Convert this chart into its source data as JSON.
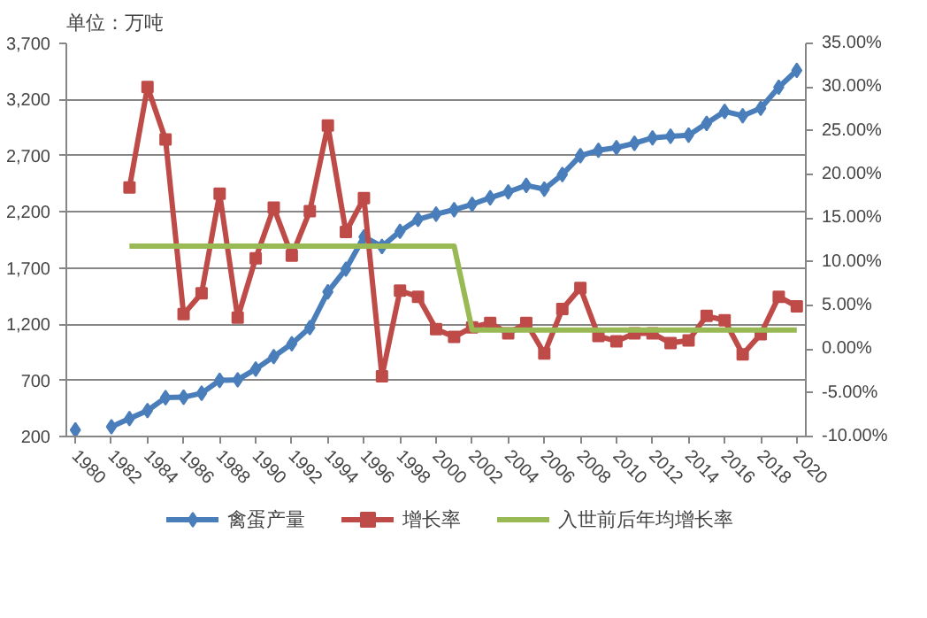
{
  "chart_data": {
    "type": "line",
    "ylabel": "单位：万吨",
    "x": [
      1980,
      1981,
      1982,
      1983,
      1984,
      1985,
      1986,
      1987,
      1988,
      1989,
      1990,
      1991,
      1992,
      1993,
      1994,
      1995,
      1996,
      1997,
      1998,
      1999,
      2000,
      2001,
      2002,
      2003,
      2004,
      2005,
      2006,
      2007,
      2008,
      2009,
      2010,
      2011,
      2012,
      2013,
      2014,
      2015,
      2016,
      2017,
      2018,
      2019,
      2020
    ],
    "xlim": [
      1979.5,
      2020.5
    ],
    "xticks": [
      1980,
      1982,
      1984,
      1986,
      1988,
      1990,
      1992,
      1994,
      1996,
      1998,
      2000,
      2002,
      2004,
      2006,
      2008,
      2010,
      2012,
      2014,
      2016,
      2018,
      2020
    ],
    "ylim": [
      200,
      3700
    ],
    "yticks": [
      200,
      700,
      {
        "value": 1200,
        "label": "1,200"
      },
      {
        "value": 1700,
        "label": "1,700"
      },
      {
        "value": 2200,
        "label": "2,200"
      },
      {
        "value": 2700,
        "label": "2,700"
      },
      {
        "value": 3200,
        "label": "3,200"
      },
      {
        "value": 3700,
        "label": "3,700"
      }
    ],
    "y2lim": [
      -10,
      35
    ],
    "y2ticks": [
      {
        "value": -10,
        "label": "-10.00%"
      },
      {
        "value": -5,
        "label": "-5.00%"
      },
      {
        "value": 0,
        "label": "0.00%"
      },
      {
        "value": 5,
        "label": "5.00%"
      },
      {
        "value": 10,
        "label": "10.00%"
      },
      {
        "value": 15,
        "label": "15.00%"
      },
      {
        "value": 20,
        "label": "20.00%"
      },
      {
        "value": 25,
        "label": "25.00%"
      },
      {
        "value": 30,
        "label": "30.00%"
      },
      {
        "value": 35,
        "label": "35.00%"
      }
    ],
    "grid": "y",
    "legend": "bottom",
    "series": [
      {
        "name": "禽蛋产量",
        "color": "#4a7ebb",
        "marker": "diamond",
        "values": [
          258,
          null,
          287,
          360,
          431,
          546,
          550,
          585,
          700,
          705,
          800,
          911,
          1026,
          1170,
          1488,
          1690,
          1978,
          1892,
          2027,
          2133,
          2180,
          2219,
          2267,
          2325,
          2378,
          2436,
          2402,
          2532,
          2700,
          2748,
          2772,
          2810,
          2859,
          2873,
          2883,
          2988,
          3094,
          3056,
          3123,
          3310,
          3460
        ]
      },
      {
        "name": "增长率",
        "color": "#be4b48",
        "marker": "square",
        "axis": "y2",
        "values": [
          null,
          null,
          null,
          18.5,
          30.0,
          24.0,
          4.0,
          6.4,
          17.8,
          3.6,
          10.4,
          16.2,
          10.7,
          15.8,
          25.6,
          13.4,
          17.3,
          -3.1,
          6.7,
          6.0,
          2.3,
          1.4,
          2.5,
          3.0,
          1.8,
          3.0,
          -0.5,
          4.6,
          7.0,
          1.5,
          0.9,
          1.8,
          1.8,
          0.7,
          1.0,
          3.8,
          3.3,
          -0.6,
          1.7,
          6.0,
          4.9
        ]
      },
      {
        "name": "入世前后年均增长率",
        "color": "#98b954",
        "marker": "none",
        "axis": "y2",
        "values": [
          null,
          null,
          null,
          11.8,
          11.8,
          11.8,
          11.8,
          11.8,
          11.8,
          11.8,
          11.8,
          11.8,
          11.8,
          11.8,
          11.8,
          11.8,
          11.8,
          11.8,
          11.8,
          11.8,
          11.8,
          11.8,
          2.2,
          2.2,
          2.2,
          2.2,
          2.2,
          2.2,
          2.2,
          2.2,
          2.2,
          2.2,
          2.2,
          2.2,
          2.2,
          2.2,
          2.2,
          2.2,
          2.2,
          2.2,
          2.2
        ]
      }
    ]
  }
}
